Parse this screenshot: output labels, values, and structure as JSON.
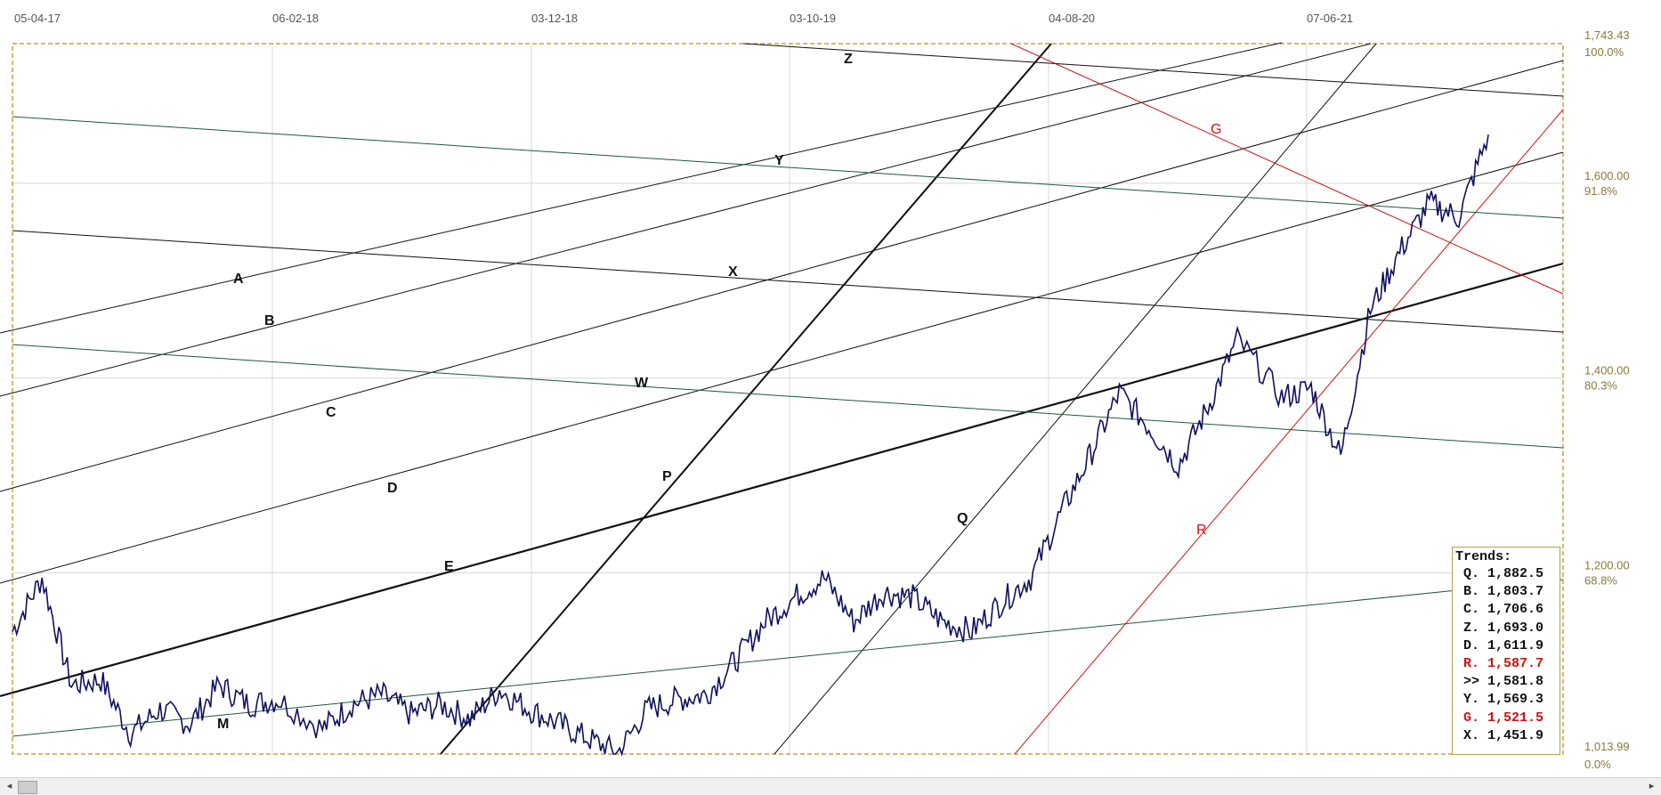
{
  "chart_data": {
    "type": "line",
    "x_tick_labels": [
      "05-04-17",
      "06-02-18",
      "03-12-18",
      "03-10-19",
      "04-08-20",
      "07-06-21"
    ],
    "y_axis": {
      "min": 1013.99,
      "max": 1743.43,
      "ticks": [
        {
          "value": 1743.43,
          "label": "1,743.43",
          "pct": "100.0%"
        },
        {
          "value": 1600.0,
          "label": "1,600.00",
          "pct": "91.8%"
        },
        {
          "value": 1400.0,
          "label": "1,400.00",
          "pct": "80.3%"
        },
        {
          "value": 1200.0,
          "label": "1,200.00",
          "pct": "68.8%"
        },
        {
          "value": 1013.99,
          "label": "1,013.99",
          "pct": "0.0%"
        }
      ]
    },
    "grid": true,
    "series": [
      {
        "color": "#101060",
        "x": [
          0,
          2,
          4,
          6,
          8,
          10,
          12,
          14,
          16,
          18,
          21,
          23,
          25,
          27,
          29,
          31,
          33,
          35,
          37,
          39,
          41,
          43,
          45,
          47,
          49,
          51,
          53,
          55,
          57,
          59,
          61,
          63,
          65,
          67,
          69,
          71,
          73,
          75,
          77,
          79,
          81,
          83,
          86,
          88,
          90,
          92,
          94,
          96,
          98,
          100
        ],
        "values": [
          1140,
          1195,
          1085,
          1090,
          1035,
          1060,
          1045,
          1085,
          1065,
          1070,
          1040,
          1065,
          1075,
          1055,
          1065,
          1050,
          1080,
          1060,
          1045,
          1030,
          1015,
          1060,
          1070,
          1075,
          1110,
          1150,
          1175,
          1195,
          1150,
          1180,
          1175,
          1150,
          1140,
          1170,
          1195,
          1260,
          1320,
          1385,
          1350,
          1310,
          1370,
          1440,
          1380,
          1390,
          1320,
          1470,
          1530,
          1580,
          1565,
          1650
        ],
        "color_hex": "#101060"
      }
    ],
    "trend_labels": [
      {
        "label": "A",
        "color": "#111111"
      },
      {
        "label": "B",
        "color": "#111111"
      },
      {
        "label": "C",
        "color": "#111111"
      },
      {
        "label": "D",
        "color": "#111111"
      },
      {
        "label": "E",
        "color": "#111111"
      },
      {
        "label": "M",
        "color": "#111111"
      },
      {
        "label": "P",
        "color": "#111111"
      },
      {
        "label": "W",
        "color": "#111111"
      },
      {
        "label": "X",
        "color": "#111111"
      },
      {
        "label": "Y",
        "color": "#111111"
      },
      {
        "label": "Z",
        "color": "#111111"
      },
      {
        "label": "Q",
        "color": "#111111"
      },
      {
        "label": "R",
        "color": "#d01010"
      },
      {
        "label": "G",
        "color": "#d01010"
      }
    ]
  },
  "legend": {
    "title": "Trends:",
    "rows": [
      {
        "text": "Q. 1,882.5",
        "color": "#111111"
      },
      {
        "text": "B. 1,803.7",
        "color": "#111111"
      },
      {
        "text": "C. 1,706.6",
        "color": "#111111"
      },
      {
        "text": "Z. 1,693.0",
        "color": "#111111"
      },
      {
        "text": "D. 1,611.9",
        "color": "#111111"
      },
      {
        "text": "R. 1,587.7",
        "color": "#d01010"
      },
      {
        "text": ">> 1,581.8",
        "color": "#111111"
      },
      {
        "text": "Y. 1,569.3",
        "color": "#111111"
      },
      {
        "text": "G. 1,521.5",
        "color": "#d01010"
      },
      {
        "text": "X. 1,451.9",
        "color": "#111111"
      }
    ]
  },
  "scrollbar": {
    "left_arrow": "◂",
    "right_arrow": "▸"
  },
  "colors": {
    "frame": "#c8a040",
    "price": "#101060",
    "trend": "#111111",
    "red_trend": "#d01010",
    "green_trend": "#1e5a3c"
  }
}
